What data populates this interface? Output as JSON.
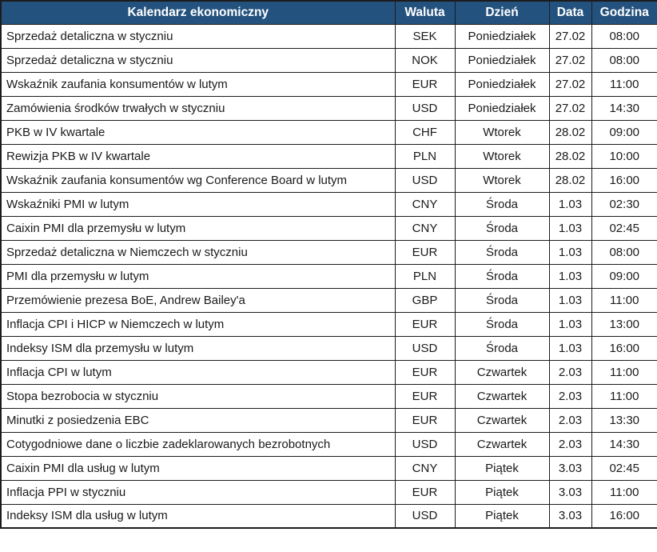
{
  "colors": {
    "header_bg": "#24527e",
    "header_text": "#ffffff",
    "row_bg": "#ffffff",
    "text": "#1a1a1a",
    "border": "#1c1c1c"
  },
  "chart_data": {
    "type": "table",
    "title": "Kalendarz ekonomiczny",
    "columns": [
      "Kalendarz ekonomiczny",
      "Waluta",
      "Dzień",
      "Data",
      "Godzina"
    ],
    "rows": [
      [
        "Sprzedaż detaliczna w styczniu",
        "SEK",
        "Poniedziałek",
        "27.02",
        "08:00"
      ],
      [
        "Sprzedaż detaliczna w styczniu",
        "NOK",
        "Poniedziałek",
        "27.02",
        "08:00"
      ],
      [
        "Wskaźnik zaufania konsumentów w lutym",
        "EUR",
        "Poniedziałek",
        "27.02",
        "11:00"
      ],
      [
        "Zamówienia środków trwałych w styczniu",
        "USD",
        "Poniedziałek",
        "27.02",
        "14:30"
      ],
      [
        "PKB w IV kwartale",
        "CHF",
        "Wtorek",
        "28.02",
        "09:00"
      ],
      [
        "Rewizja PKB w IV kwartale",
        "PLN",
        "Wtorek",
        "28.02",
        "10:00"
      ],
      [
        "Wskaźnik zaufania konsumentów wg Conference Board w lutym",
        "USD",
        "Wtorek",
        "28.02",
        "16:00"
      ],
      [
        "Wskaźniki PMI w lutym",
        "CNY",
        "Środa",
        "1.03",
        "02:30"
      ],
      [
        "Caixin PMI dla przemysłu w lutym",
        "CNY",
        "Środa",
        "1.03",
        "02:45"
      ],
      [
        "Sprzedaż detaliczna w Niemczech w styczniu",
        "EUR",
        "Środa",
        "1.03",
        "08:00"
      ],
      [
        "PMI dla przemysłu w lutym",
        "PLN",
        "Środa",
        "1.03",
        "09:00"
      ],
      [
        "Przemówienie prezesa BoE, Andrew Bailey'a",
        "GBP",
        "Środa",
        "1.03",
        "11:00"
      ],
      [
        "Inflacja CPI i HICP w Niemczech w lutym",
        "EUR",
        "Środa",
        "1.03",
        "13:00"
      ],
      [
        "Indeksy ISM dla przemysłu w lutym",
        "USD",
        "Środa",
        "1.03",
        "16:00"
      ],
      [
        "Inflacja CPI w lutym",
        "EUR",
        "Czwartek",
        "2.03",
        "11:00"
      ],
      [
        "Stopa bezrobocia w styczniu",
        "EUR",
        "Czwartek",
        "2.03",
        "11:00"
      ],
      [
        "Minutki z posiedzenia EBC",
        "EUR",
        "Czwartek",
        "2.03",
        "13:30"
      ],
      [
        "Cotygodniowe dane o liczbie zadeklarowanych bezrobotnych",
        "USD",
        "Czwartek",
        "2.03",
        "14:30"
      ],
      [
        "Caixin PMI dla usług w lutym",
        "CNY",
        "Piątek",
        "3.03",
        "02:45"
      ],
      [
        "Inflacja PPI w styczniu",
        "EUR",
        "Piątek",
        "3.03",
        "11:00"
      ],
      [
        "Indeksy ISM dla usług w lutym",
        "USD",
        "Piątek",
        "3.03",
        "16:00"
      ]
    ]
  }
}
